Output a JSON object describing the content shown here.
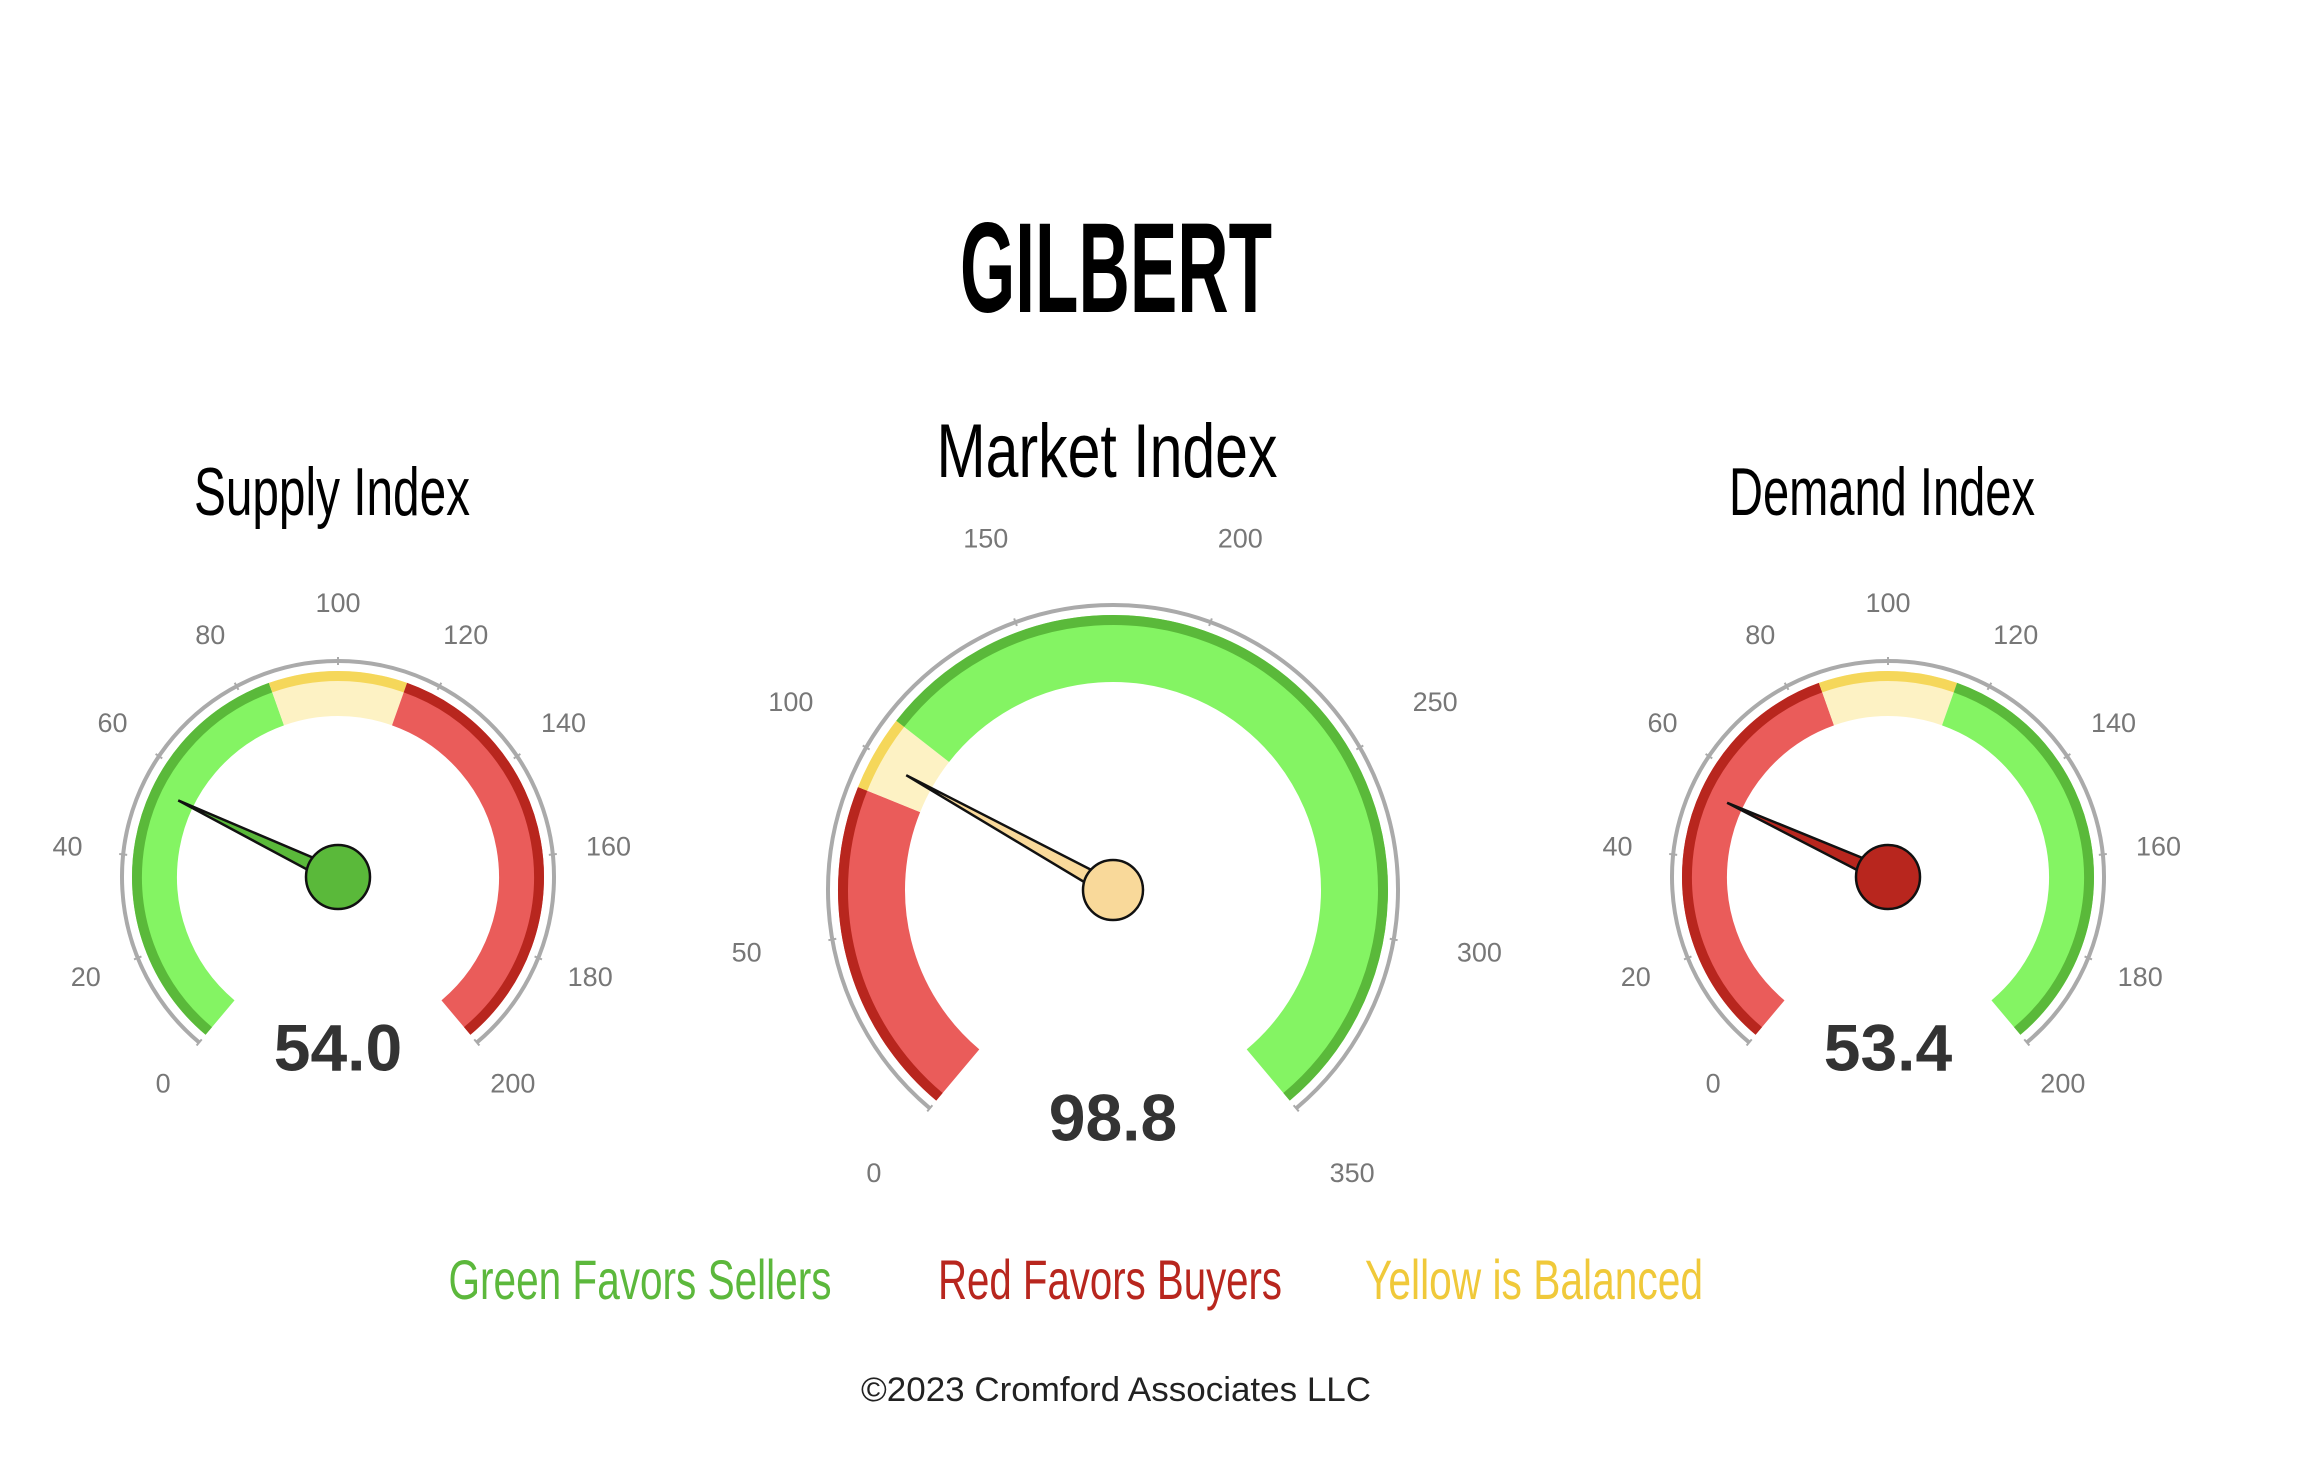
{
  "title": "GILBERT",
  "chart_data": [
    {
      "type": "gauge",
      "title": "Supply Index",
      "values": [
        54
      ],
      "value_labels": [
        "54.0"
      ],
      "lim": [
        0,
        200
      ],
      "ticks": [
        0,
        20,
        40,
        60,
        80,
        100,
        120,
        140,
        160,
        180,
        200
      ],
      "needle_color": "#5ab93a",
      "bands": [
        {
          "from": 0,
          "to": 86,
          "color": "#84f463",
          "edge": "#5ab93a"
        },
        {
          "from": 86,
          "to": 114,
          "color": "#fdf2c4",
          "edge": "#f5d75a"
        },
        {
          "from": 114,
          "to": 200,
          "color": "#ea5c5a",
          "edge": "#b8261e"
        }
      ]
    },
    {
      "type": "gauge",
      "title": "Market Index",
      "values": [
        98.8
      ],
      "lim": [
        0,
        350
      ],
      "ticks": [
        0,
        50,
        100,
        150,
        200,
        250,
        300,
        350
      ],
      "needle_color": "#f9d99a",
      "bands": [
        {
          "from": 0,
          "to": 90,
          "color": "#ea5c5a",
          "edge": "#b8261e"
        },
        {
          "from": 90,
          "to": 110,
          "color": "#fdf2c4",
          "edge": "#f5d75a"
        },
        {
          "from": 110,
          "to": 350,
          "color": "#84f463",
          "edge": "#5ab93a"
        }
      ]
    },
    {
      "type": "gauge",
      "title": "Demand Index",
      "values": [
        53.4
      ],
      "lim": [
        0,
        200
      ],
      "ticks": [
        0,
        20,
        40,
        60,
        80,
        100,
        120,
        140,
        160,
        180,
        200
      ],
      "needle_color": "#b8261e",
      "bands": [
        {
          "from": 0,
          "to": 86,
          "color": "#ea5c5a",
          "edge": "#b8261e"
        },
        {
          "from": 86,
          "to": 114,
          "color": "#fdf2c4",
          "edge": "#f5d75a"
        },
        {
          "from": 114,
          "to": 200,
          "color": "#84f463",
          "edge": "#5ab93a"
        }
      ]
    }
  ],
  "legend": [
    {
      "text": "Green Favors Sellers",
      "color": "#5cb83c"
    },
    {
      "text": "Red Favors Buyers",
      "color": "#b8261e"
    },
    {
      "text": "Yellow is Balanced",
      "color": "#f0c93a"
    }
  ],
  "footer": "©2023 Cromford Associates LLC"
}
